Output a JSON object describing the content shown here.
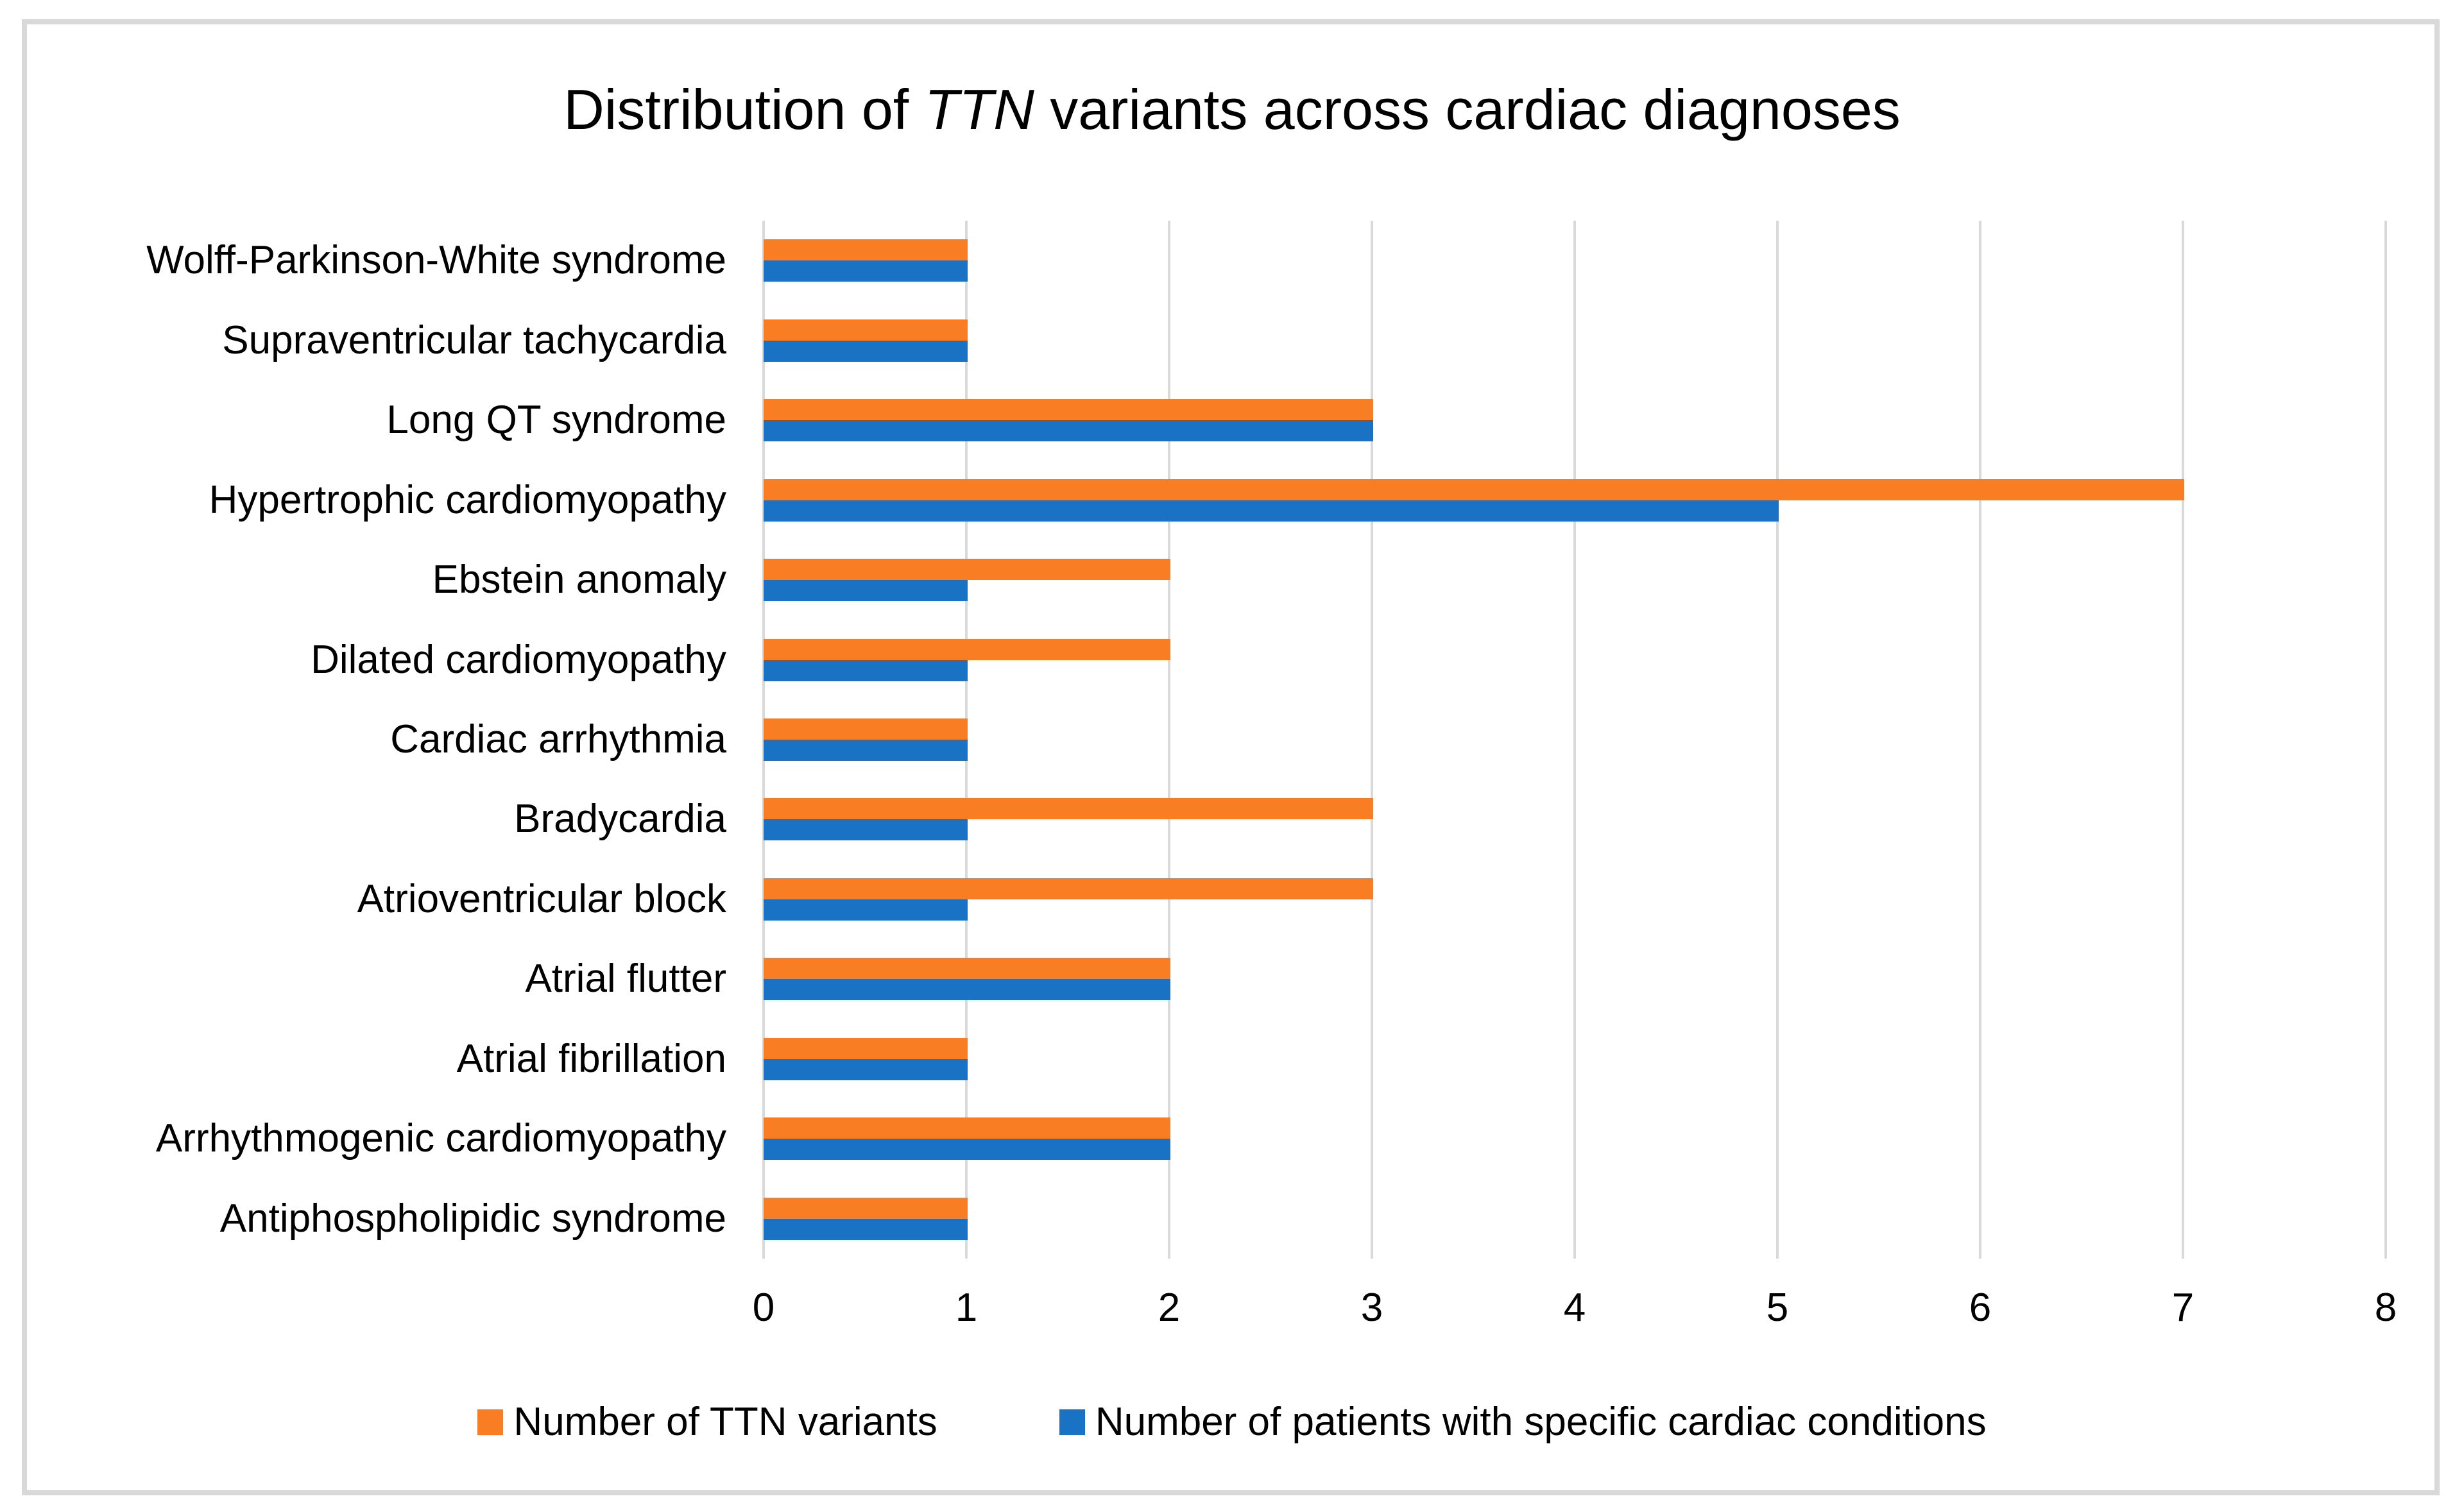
{
  "figure": {
    "title_prefix": "Distribution of ",
    "title_italic": "TTN",
    "title_suffix": " variants across cardiac diagnoses"
  },
  "chart_data": {
    "type": "bar",
    "orientation": "horizontal",
    "title": "Distribution of TTN variants across cardiac diagnoses",
    "categories": [
      "Wolff-Parkinson-White syndrome",
      "Supraventricular tachycardia",
      "Long QT syndrome",
      "Hypertrophic cardiomyopathy",
      "Ebstein anomaly",
      "Dilated cardiomyopathy",
      "Cardiac arrhythmia",
      "Bradycardia",
      "Atrioventricular block",
      "Atrial flutter",
      "Atrial fibrillation",
      "Arrhythmogenic cardiomyopathy",
      "Antiphospholipidic syndrome"
    ],
    "series": [
      {
        "name": "Number of TTN variants",
        "color": "#F97E23",
        "values": [
          1,
          1,
          3,
          7,
          2,
          2,
          1,
          3,
          3,
          2,
          1,
          2,
          1
        ]
      },
      {
        "name": "Number of patients with specific cardiac conditions",
        "color": "#1A72C4",
        "values": [
          1,
          1,
          3,
          5,
          1,
          1,
          1,
          1,
          1,
          2,
          1,
          2,
          1
        ]
      }
    ],
    "xlabel": "",
    "ylabel": "",
    "xlim": [
      0,
      8
    ],
    "x_ticks": [
      0,
      1,
      2,
      3,
      4,
      5,
      6,
      7,
      8
    ],
    "grid": true,
    "gridline_color": "#D9D9D9",
    "border_color": "#D9D9D9",
    "background": "#FFFFFF",
    "text_color": "#000000",
    "legend_position": "bottom"
  }
}
